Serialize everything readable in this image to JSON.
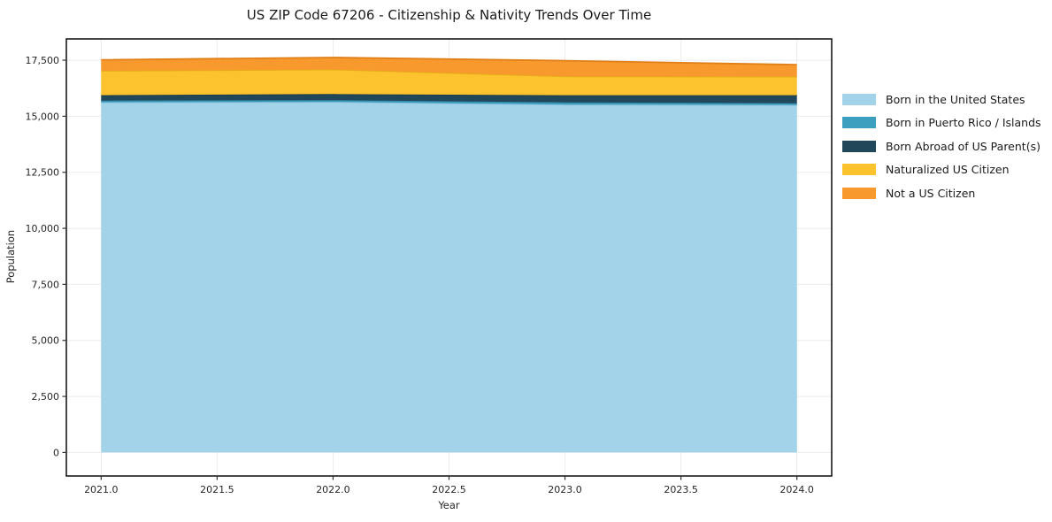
{
  "chart_data": {
    "type": "area",
    "stacked": true,
    "title": "US ZIP Code 67206 - Citizenship & Nativity Trends Over Time",
    "xlabel": "Year",
    "ylabel": "Population",
    "x": [
      2021,
      2022,
      2023,
      2024
    ],
    "series": [
      {
        "name": "Born in the United States",
        "color": "#a3d3e8",
        "edge_color": "#8cc1db",
        "values": [
          15620,
          15640,
          15520,
          15500
        ]
      },
      {
        "name": "Born in Puerto Rico / Islands",
        "color": "#3d9fc0",
        "edge_color": "#348bab",
        "values": [
          80,
          80,
          100,
          80
        ]
      },
      {
        "name": "Born Abroad of US Parent(s)",
        "color": "#21485a",
        "edge_color": "#1a3a49",
        "values": [
          240,
          270,
          320,
          360
        ]
      },
      {
        "name": "Naturalized US Citizen",
        "color": "#fcc32f",
        "edge_color": "#e5ad17",
        "values": [
          1090,
          1100,
          840,
          830
        ]
      },
      {
        "name": "Not a US Citizen",
        "color": "#f8992e",
        "edge_color": "#e07f18",
        "values": [
          490,
          530,
          700,
          530
        ]
      }
    ],
    "stack_totals": [
      17520,
      17620,
      17480,
      17300
    ],
    "xlim": [
      2020.85,
      2024.15
    ],
    "ylim": [
      -1050,
      18450
    ],
    "xticks": {
      "values": [
        2021,
        2021.5,
        2022,
        2022.5,
        2023,
        2023.5,
        2024
      ],
      "labels": [
        "2021.0",
        "2021.5",
        "2022.0",
        "2022.5",
        "2023.0",
        "2023.5",
        "2024.0"
      ]
    },
    "yticks": {
      "values": [
        0,
        2500,
        5000,
        7500,
        10000,
        12500,
        15000,
        17500
      ],
      "labels": [
        "0",
        "2,500",
        "5,000",
        "7,500",
        "10,000",
        "12,500",
        "15,000",
        "17,500"
      ]
    },
    "grid": true,
    "legend_position": "right"
  },
  "style": {
    "grid_color": "#ebebeb",
    "spine_color": "#1a1a1a",
    "tick_color": "#333333",
    "tick_label_color": "#262626",
    "background": "#ffffff"
  }
}
